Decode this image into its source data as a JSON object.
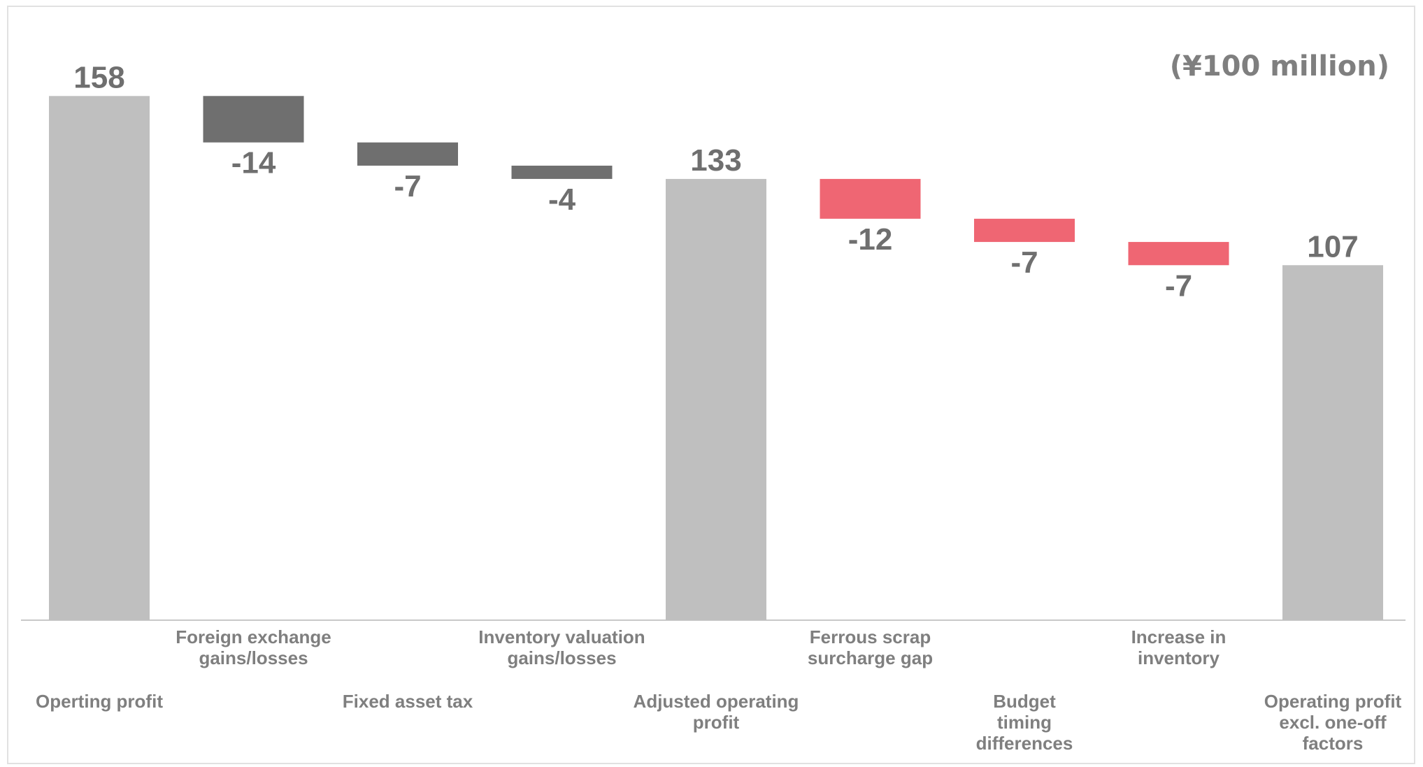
{
  "chart_data": {
    "type": "waterfall",
    "unit_label": "(¥100 million)",
    "categories": [
      "Operting profit",
      "Foreign exchange gains/losses",
      "Fixed asset tax",
      "Inventory valuation gains/losses",
      "Adjusted operating profit",
      "Ferrous scrap surcharge gap",
      "Budget timing differences",
      "Increase in inventory",
      "Operating profit excl. one-off factors"
    ],
    "category_lines": [
      [
        "Operting profit"
      ],
      [
        "Foreign exchange",
        "gains/losses"
      ],
      [
        "Fixed asset tax"
      ],
      [
        "Inventory valuation",
        "gains/losses"
      ],
      [
        "Adjusted operating",
        "profit"
      ],
      [
        "Ferrous scrap",
        "surcharge gap"
      ],
      [
        "Budget",
        "timing",
        "differences"
      ],
      [
        "Increase in",
        "inventory"
      ],
      [
        "Operating profit",
        "excl. one-off",
        "factors"
      ]
    ],
    "values": [
      158,
      -14,
      -7,
      -4,
      133,
      -12,
      -7,
      -7,
      107
    ],
    "value_labels": [
      "158",
      "-14",
      "-7",
      "-4",
      "133",
      "-12",
      "-7",
      "-7",
      "107"
    ],
    "kinds": [
      "total",
      "change",
      "change",
      "change",
      "total",
      "change",
      "change",
      "change",
      "total"
    ],
    "ylim": [
      0,
      158
    ],
    "grid": false,
    "legend": "none",
    "colors": {
      "total": "#bfbfbf",
      "change_group_1": "#6f6f6f",
      "change_group_2": "#ef6673",
      "axis": "#c8c8c8"
    }
  }
}
